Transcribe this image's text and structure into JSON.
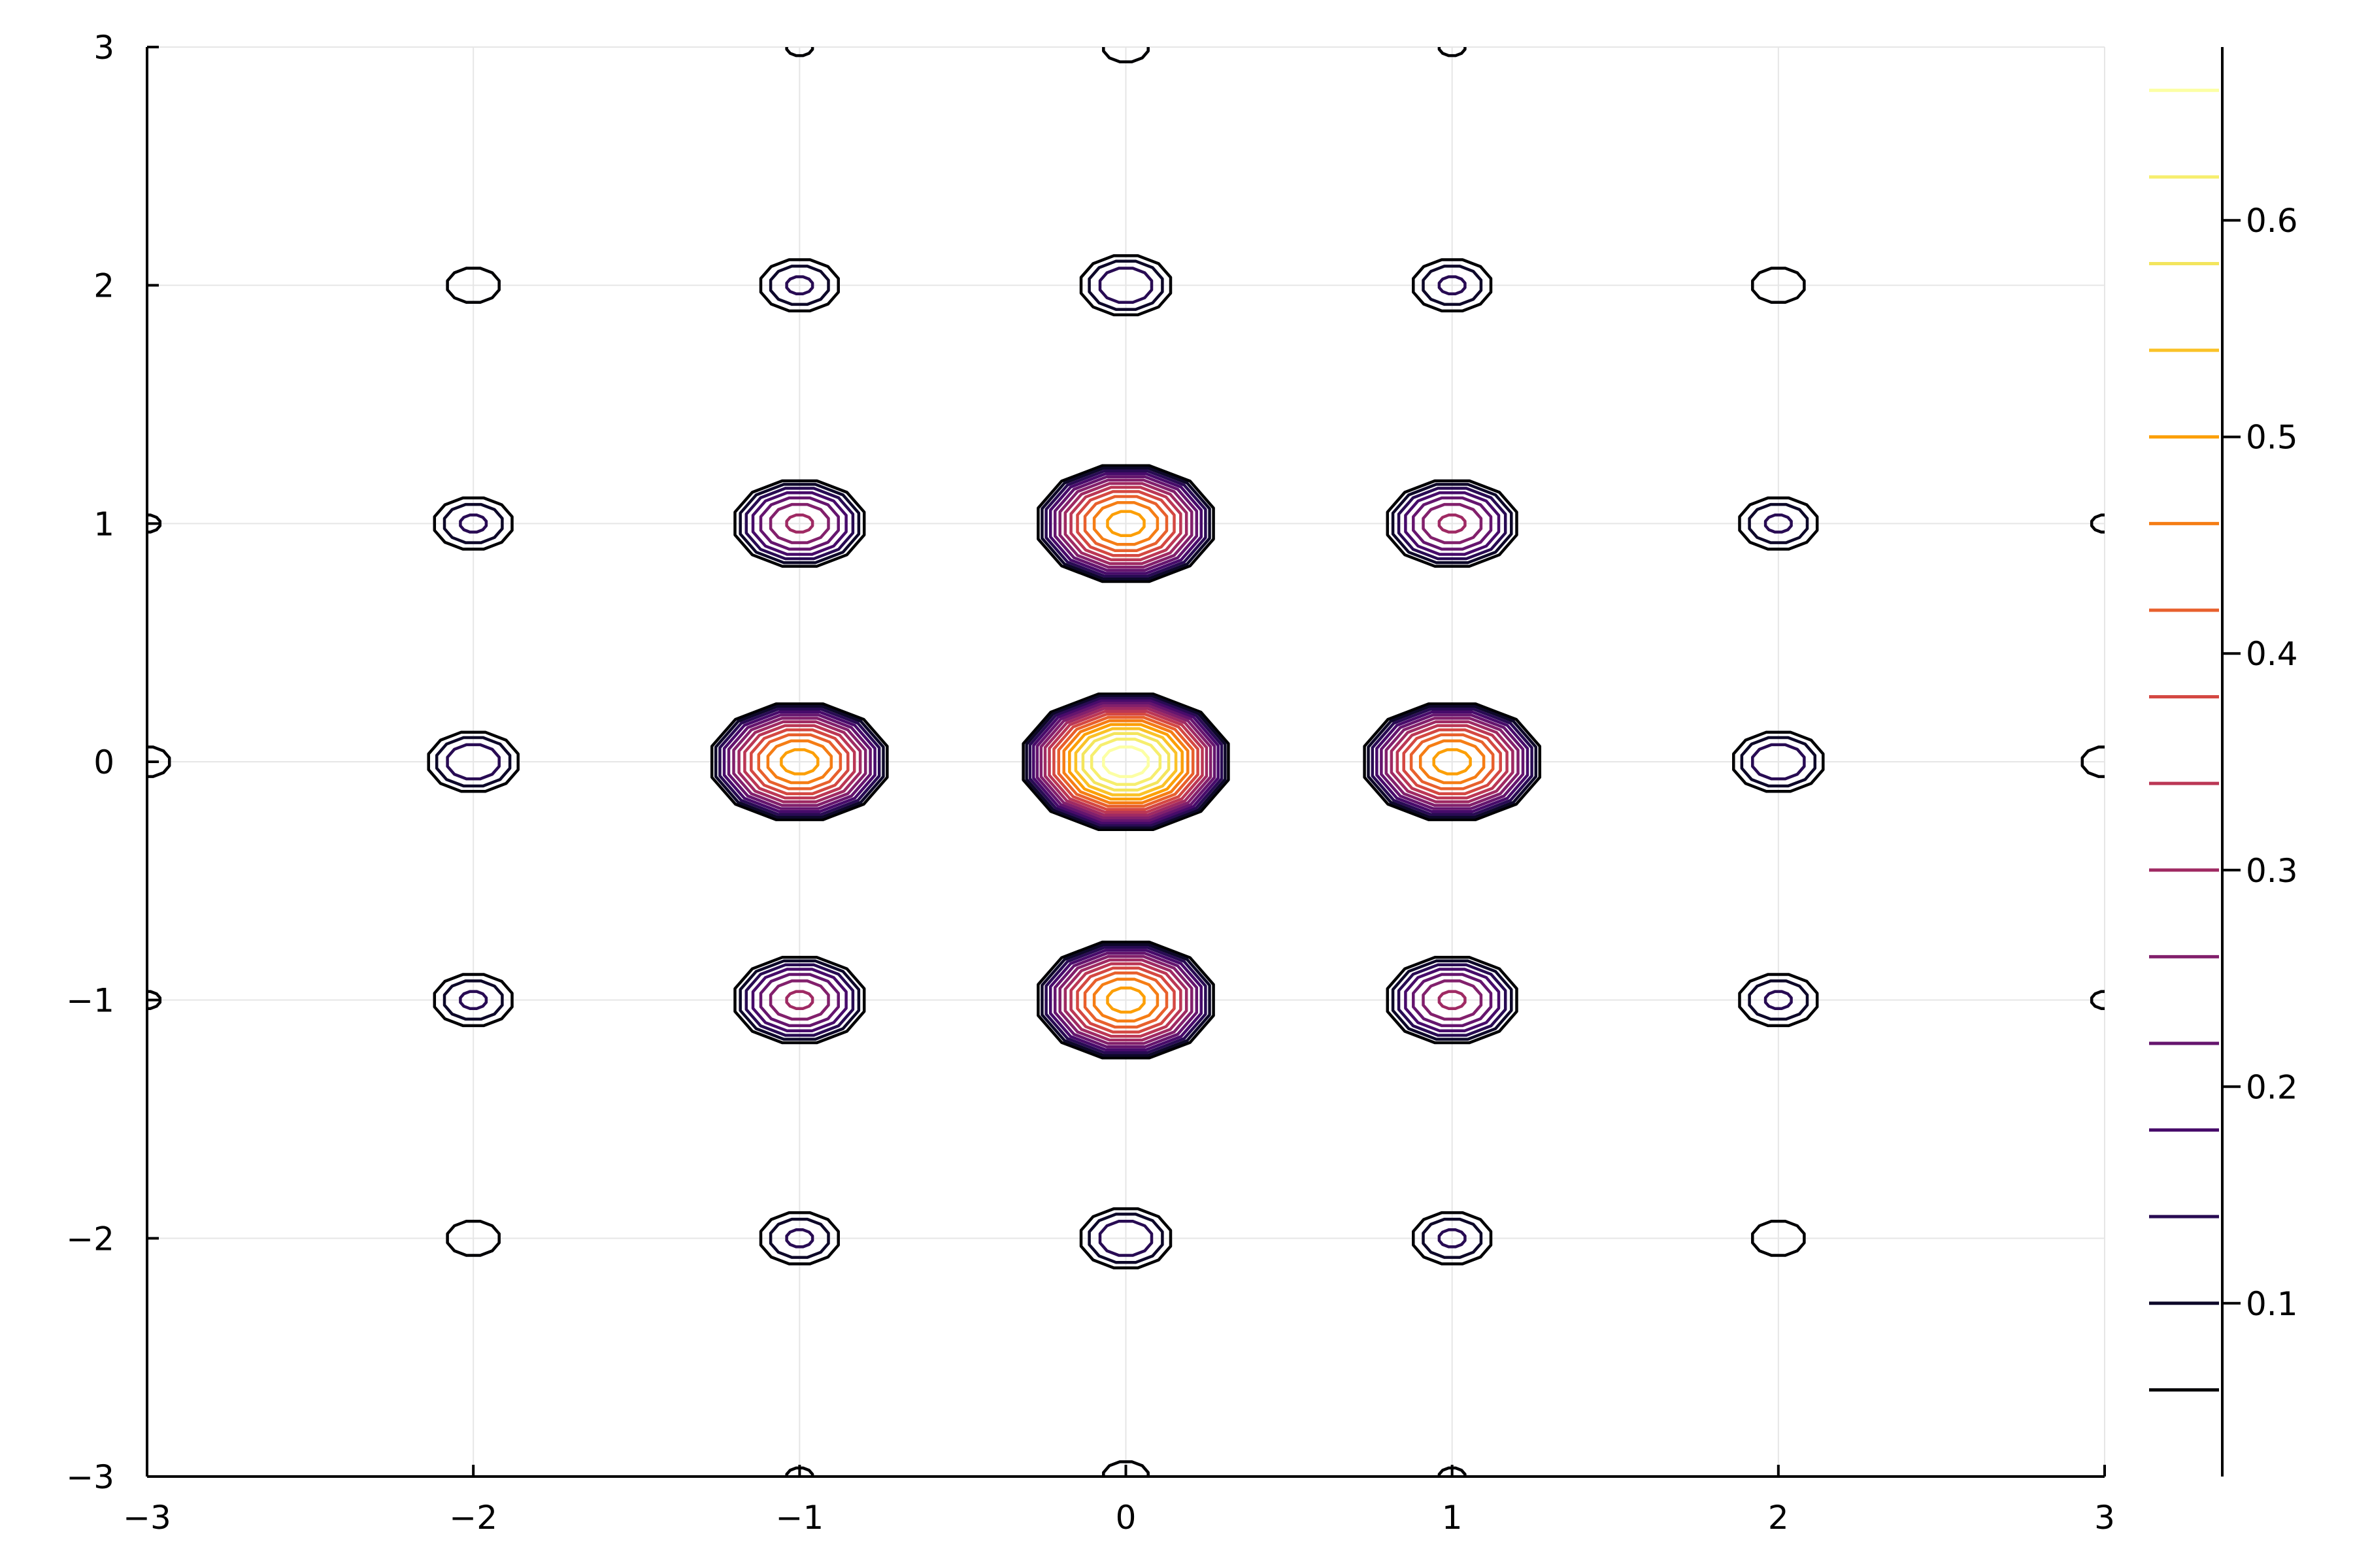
{
  "chart_data": {
    "type": "contour",
    "title": "",
    "xlabel": "",
    "ylabel": "",
    "xlim": [
      -3,
      3
    ],
    "ylim": [
      -3,
      3
    ],
    "grid": true,
    "x_ticks": [
      {
        "value": -3,
        "label": "−3"
      },
      {
        "value": -2,
        "label": "−2"
      },
      {
        "value": -1,
        "label": "−1"
      },
      {
        "value": 0,
        "label": "0"
      },
      {
        "value": 1,
        "label": "1"
      },
      {
        "value": 2,
        "label": "2"
      },
      {
        "value": 3,
        "label": "3"
      }
    ],
    "y_ticks": [
      {
        "value": -3,
        "label": "−3"
      },
      {
        "value": -2,
        "label": "−2"
      },
      {
        "value": -1,
        "label": "−1"
      },
      {
        "value": 0,
        "label": "0"
      },
      {
        "value": 1,
        "label": "1"
      },
      {
        "value": 2,
        "label": "2"
      },
      {
        "value": 3,
        "label": "3"
      }
    ],
    "function_peak": 0.69,
    "peaks": [
      {
        "x": 0,
        "y": 0,
        "value": 0.69
      },
      {
        "x": -1,
        "y": 0,
        "value": 0.52
      },
      {
        "x": 1,
        "y": 0,
        "value": 0.52
      },
      {
        "x": 0,
        "y": 1,
        "value": 0.52
      },
      {
        "x": 0,
        "y": -1,
        "value": 0.52
      },
      {
        "x": -1,
        "y": 1,
        "value": 0.31
      },
      {
        "x": 1,
        "y": 1,
        "value": 0.31
      },
      {
        "x": -1,
        "y": -1,
        "value": 0.31
      },
      {
        "x": 1,
        "y": -1,
        "value": 0.31
      },
      {
        "x": -2,
        "y": 0,
        "value": 0.18
      },
      {
        "x": 2,
        "y": 0,
        "value": 0.18
      },
      {
        "x": 0,
        "y": 2,
        "value": 0.18
      },
      {
        "x": 0,
        "y": -2,
        "value": 0.18
      },
      {
        "x": -2,
        "y": 1,
        "value": 0.15
      },
      {
        "x": 2,
        "y": 1,
        "value": 0.15
      },
      {
        "x": -2,
        "y": -1,
        "value": 0.15
      },
      {
        "x": 2,
        "y": -1,
        "value": 0.15
      },
      {
        "x": -1,
        "y": 2,
        "value": 0.15
      },
      {
        "x": 1,
        "y": 2,
        "value": 0.15
      },
      {
        "x": -1,
        "y": -2,
        "value": 0.15
      },
      {
        "x": 1,
        "y": -2,
        "value": 0.15
      },
      {
        "x": -2,
        "y": 2,
        "value": 0.1
      },
      {
        "x": 2,
        "y": 2,
        "value": 0.1
      },
      {
        "x": -2,
        "y": -2,
        "value": 0.1
      },
      {
        "x": 2,
        "y": -2,
        "value": 0.1
      },
      {
        "x": -3,
        "y": 0,
        "value": 0.09
      },
      {
        "x": 3,
        "y": 0,
        "value": 0.09
      },
      {
        "x": 0,
        "y": 3,
        "value": 0.09
      },
      {
        "x": 0,
        "y": -3,
        "value": 0.09
      },
      {
        "x": -3,
        "y": 1,
        "value": 0.07
      },
      {
        "x": 3,
        "y": 1,
        "value": 0.07
      },
      {
        "x": -3,
        "y": -1,
        "value": 0.07
      },
      {
        "x": 3,
        "y": -1,
        "value": 0.07
      },
      {
        "x": -1,
        "y": 3,
        "value": 0.07
      },
      {
        "x": 1,
        "y": 3,
        "value": 0.07
      },
      {
        "x": -1,
        "y": -3,
        "value": 0.07
      },
      {
        "x": 1,
        "y": -3,
        "value": 0.07
      },
      {
        "x": -3,
        "y": 2,
        "value": 0.05
      },
      {
        "x": 3,
        "y": 2,
        "value": 0.05
      },
      {
        "x": -3,
        "y": -2,
        "value": 0.05
      },
      {
        "x": 3,
        "y": -2,
        "value": 0.05
      },
      {
        "x": -2,
        "y": 3,
        "value": 0.05
      },
      {
        "x": 2,
        "y": 3,
        "value": 0.05
      },
      {
        "x": -2,
        "y": -3,
        "value": 0.05
      },
      {
        "x": 2,
        "y": -3,
        "value": 0.05
      }
    ],
    "colorbar": {
      "range": [
        0.02,
        0.68
      ],
      "levels": [
        0.06,
        0.1,
        0.14,
        0.18,
        0.22,
        0.26,
        0.3,
        0.34,
        0.38,
        0.42,
        0.46,
        0.5,
        0.54,
        0.58,
        0.62,
        0.66
      ],
      "level_colors": [
        "#000004",
        "#0d0829",
        "#280b53",
        "#470b6a",
        "#65156e",
        "#82206c",
        "#9f2a63",
        "#bb3755",
        "#d44842",
        "#e8602d",
        "#f57d15",
        "#fc9f07",
        "#fac228",
        "#f3e55d",
        "#f6ee6e",
        "#fcffa4"
      ],
      "ticks": [
        {
          "value": 0.1,
          "label": "0.1"
        },
        {
          "value": 0.2,
          "label": "0.2"
        },
        {
          "value": 0.3,
          "label": "0.3"
        },
        {
          "value": 0.4,
          "label": "0.4"
        },
        {
          "value": 0.5,
          "label": "0.5"
        },
        {
          "value": 0.6,
          "label": "0.6"
        }
      ]
    }
  }
}
